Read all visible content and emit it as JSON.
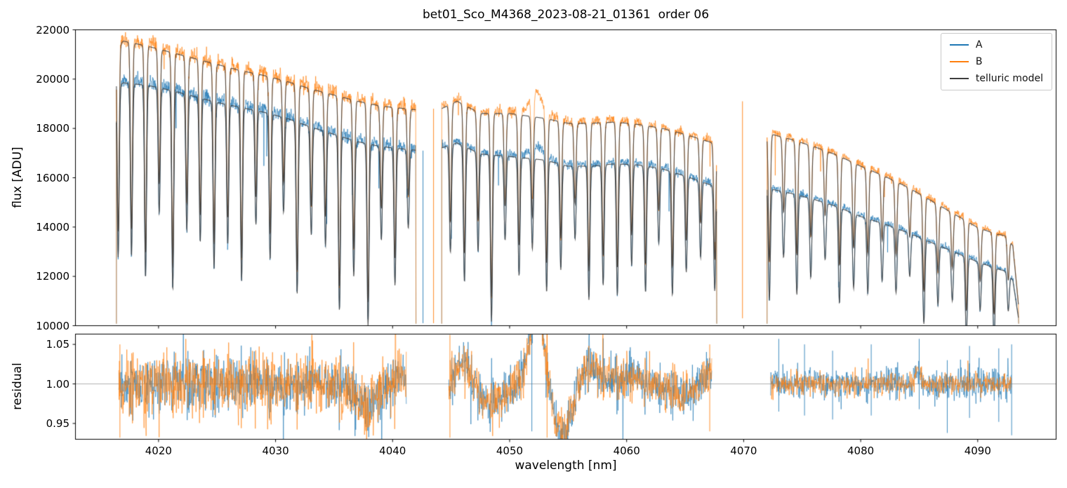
{
  "figure": {
    "background": "#ffffff"
  },
  "chart_data": {
    "type": "line",
    "title": "bet01_Sco_M4368_2023-08-21_01361  order 06",
    "xlabel": "wavelength [nm]",
    "xlim": [
      4012.9,
      4096.7
    ],
    "xticks": [
      4020,
      4030,
      4040,
      4050,
      4060,
      4070,
      4080,
      4090
    ],
    "xticklabels": [
      "4020",
      "4030",
      "4040",
      "4050",
      "4060",
      "4070",
      "4080",
      "4090"
    ],
    "seed": 20230821,
    "legend": [
      {
        "label": "A",
        "color": "#1f77b4"
      },
      {
        "label": "B",
        "color": "#ff7f0e"
      },
      {
        "label": "telluric model",
        "color": "#3d3d3d"
      }
    ],
    "panels": [
      {
        "name": "flux",
        "ylabel": "flux [ADU]",
        "ylim": [
          10000,
          22000
        ],
        "yticks": [
          10000,
          12000,
          14000,
          16000,
          18000,
          20000,
          22000
        ],
        "yticklabels": [
          "10000",
          "12000",
          "14000",
          "16000",
          "18000",
          "20000",
          "22000"
        ],
        "segments": [
          [
            4016.4,
            4042.0
          ],
          [
            4044.2,
            4067.7
          ],
          [
            4072.0,
            4093.5
          ]
        ],
        "series": {
          "A": {
            "color": "#1f77b4",
            "envelope": [
              [
                4016.4,
                19800
              ],
              [
                4017,
                19950
              ],
              [
                4019,
                19850
              ],
              [
                4021,
                19650
              ],
              [
                4023,
                19400
              ],
              [
                4025,
                19150
              ],
              [
                4027,
                18950
              ],
              [
                4029,
                18750
              ],
              [
                4031,
                18500
              ],
              [
                4033,
                18150
              ],
              [
                4035,
                17850
              ],
              [
                4037,
                17550
              ],
              [
                4039,
                17350
              ],
              [
                4041,
                17250
              ],
              [
                4042,
                17200
              ],
              [
                4044.2,
                17300
              ],
              [
                4045.5,
                17500
              ],
              [
                4047.5,
                17050
              ],
              [
                4050,
                16950
              ],
              [
                4053,
                16800
              ],
              [
                4055,
                16550
              ],
              [
                4057,
                16550
              ],
              [
                4059,
                16650
              ],
              [
                4061,
                16600
              ],
              [
                4063,
                16450
              ],
              [
                4065,
                16150
              ],
              [
                4067.7,
                15700
              ],
              [
                4072,
                15650
              ],
              [
                4074,
                15450
              ],
              [
                4076,
                15200
              ],
              [
                4078,
                14900
              ],
              [
                4080,
                14500
              ],
              [
                4082,
                14200
              ],
              [
                4084,
                13850
              ],
              [
                4086,
                13450
              ],
              [
                4088,
                13050
              ],
              [
                4090,
                12650
              ],
              [
                4091.5,
                12400
              ],
              [
                4092.5,
                12250
              ],
              [
                4093,
                11900
              ],
              [
                4093.5,
                10300
              ]
            ]
          },
          "B": {
            "color": "#ff7f0e",
            "envelope": [
              [
                4016.4,
                21400
              ],
              [
                4017,
                21650
              ],
              [
                4019,
                21450
              ],
              [
                4021,
                21200
              ],
              [
                4023,
                20950
              ],
              [
                4025,
                20700
              ],
              [
                4027,
                20450
              ],
              [
                4029,
                20250
              ],
              [
                4031,
                20000
              ],
              [
                4033,
                19700
              ],
              [
                4035,
                19450
              ],
              [
                4037,
                19200
              ],
              [
                4039,
                19000
              ],
              [
                4041,
                18900
              ],
              [
                4042,
                18850
              ],
              [
                4044.2,
                18900
              ],
              [
                4045.5,
                19200
              ],
              [
                4047.5,
                18700
              ],
              [
                4050,
                18700
              ],
              [
                4053,
                18500
              ],
              [
                4055,
                18300
              ],
              [
                4057,
                18300
              ],
              [
                4059,
                18350
              ],
              [
                4061,
                18250
              ],
              [
                4063,
                18100
              ],
              [
                4065,
                17850
              ],
              [
                4067.7,
                17450
              ],
              [
                4072,
                17900
              ],
              [
                4074,
                17650
              ],
              [
                4076,
                17350
              ],
              [
                4078,
                17000
              ],
              [
                4080,
                16550
              ],
              [
                4082,
                16150
              ],
              [
                4084,
                15700
              ],
              [
                4086,
                15150
              ],
              [
                4088,
                14600
              ],
              [
                4090,
                14050
              ],
              [
                4091.5,
                13800
              ],
              [
                4092.5,
                13700
              ],
              [
                4093,
                13300
              ],
              [
                4093.5,
                10800
              ]
            ]
          }
        },
        "bump": {
          "center": 4052.3,
          "sigma": 0.55,
          "amp": {
            "A": 450,
            "B": 900
          }
        },
        "telluric": {
          "label": "telluric model",
          "color": "#3d3d3d",
          "start": 4016.55,
          "spacing": 1.18,
          "sigma": 0.085,
          "depth_slope": 0.0068,
          "model_scale": 0.995,
          "depths": [
            0.44,
            0.3,
            0.4,
            0.27,
            0.42,
            0.33,
            0.29,
            0.43,
            0.35
          ]
        },
        "noise": {
          "A": [
            0.008,
            0.0055,
            0.005
          ],
          "B": [
            0.008,
            0.0055,
            0.005
          ]
        },
        "spike_prob": {
          "A": 0.005,
          "B": 0.003
        },
        "spikes": [
          {
            "series": "A",
            "x": 4042.6,
            "y0": 10100,
            "y1": 17100
          },
          {
            "series": "B",
            "x": 4043.5,
            "y0": 10100,
            "y1": 18800
          },
          {
            "series": "B",
            "x": 4069.9,
            "y0": 10300,
            "y1": 19100
          }
        ]
      },
      {
        "name": "residual",
        "ylabel": "residual",
        "ylim": [
          0.93,
          1.063
        ],
        "yticks": [
          0.95,
          1.0,
          1.05
        ],
        "yticklabels": [
          "0.95",
          "1.00",
          "1.05"
        ],
        "baseline": 1.0,
        "segments": [
          [
            4016.6,
            4041.2
          ],
          [
            4044.8,
            4067.3
          ],
          [
            4072.3,
            4092.9
          ]
        ],
        "noise": {
          "A": [
            0.016,
            0.013,
            0.009
          ],
          "B": [
            0.018,
            0.013,
            0.0065
          ]
        },
        "features": [
          {
            "center": 4037.8,
            "sigma": 0.9,
            "amp": -0.027
          },
          {
            "center": 4040.6,
            "sigma": 0.4,
            "amp": 0.016
          },
          {
            "center": 4046.0,
            "sigma": 0.6,
            "amp": 0.028
          },
          {
            "center": 4048.5,
            "sigma": 1.0,
            "amp": -0.024
          },
          {
            "center": 4052.35,
            "sigma": 0.6,
            "amp": 0.1
          },
          {
            "center": 4054.5,
            "sigma": 0.8,
            "amp": -0.062
          },
          {
            "center": 4056.8,
            "sigma": 0.7,
            "amp": 0.022
          },
          {
            "center": 4059.8,
            "sigma": 1.6,
            "amp": 0.01
          },
          {
            "center": 4064.5,
            "sigma": 1.2,
            "amp": -0.012
          },
          {
            "center": 4067.2,
            "sigma": 0.4,
            "amp": 0.018
          },
          {
            "center": 4084.9,
            "sigma": 0.25,
            "amp": 0.018
          }
        ],
        "spikes": [
          {
            "series": "B",
            "x": 4016.7,
            "y0": 0.932,
            "y1": 1.05
          },
          {
            "series": "B",
            "x": 4044.9,
            "y0": 0.932,
            "y1": 1.062
          },
          {
            "series": "A",
            "x": 4051.9,
            "y0": 0.94,
            "y1": 1.062
          },
          {
            "series": "B",
            "x": 4053.2,
            "y0": 0.932,
            "y1": 1.062
          },
          {
            "series": "B",
            "x": 4067.1,
            "y0": 0.94,
            "y1": 1.05
          },
          {
            "series": "A",
            "x": 4073.0,
            "y0": 0.965,
            "y1": 1.057
          },
          {
            "series": "A",
            "x": 4075.2,
            "y0": 0.96,
            "y1": 1.05
          },
          {
            "series": "A",
            "x": 4077.6,
            "y0": 0.955,
            "y1": 1.042
          },
          {
            "series": "A",
            "x": 4080.9,
            "y0": 0.96,
            "y1": 1.05
          },
          {
            "series": "A",
            "x": 4085.0,
            "y0": 0.968,
            "y1": 1.057
          },
          {
            "series": "A",
            "x": 4087.4,
            "y0": 0.938,
            "y1": 1.03
          },
          {
            "series": "A",
            "x": 4089.3,
            "y0": 0.957,
            "y1": 1.048
          },
          {
            "series": "A",
            "x": 4091.8,
            "y0": 0.952,
            "y1": 1.045
          },
          {
            "series": "A",
            "x": 4092.9,
            "y0": 0.935,
            "y1": 1.05
          }
        ]
      }
    ]
  }
}
